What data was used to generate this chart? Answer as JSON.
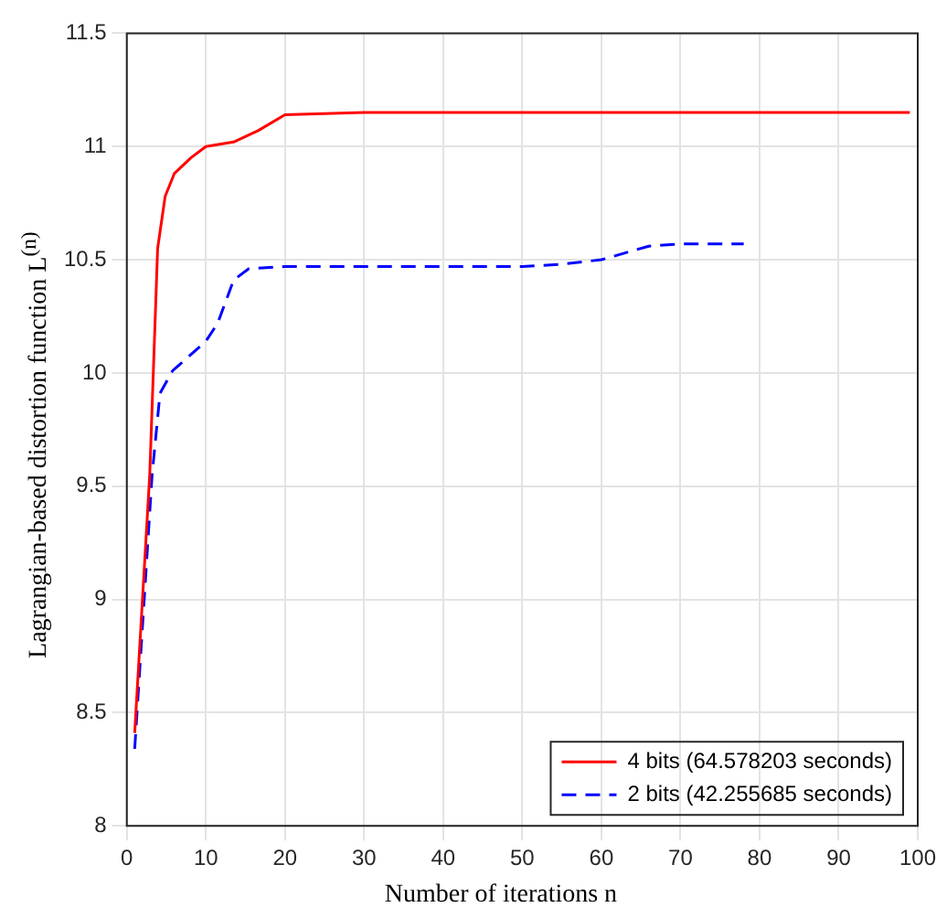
{
  "chart_data": {
    "type": "line",
    "xlabel": "Number of iterations n",
    "ylabel": "Lagrangian-based distortion function L$^{(n)}$",
    "xlim": [
      0,
      100
    ],
    "ylim": [
      8,
      11.5
    ],
    "xticks": [
      0,
      10,
      20,
      30,
      40,
      50,
      60,
      70,
      80,
      90,
      100
    ],
    "yticks": [
      8,
      8.5,
      9,
      9.5,
      10,
      10.5,
      11,
      11.5
    ],
    "grid": true,
    "legend": "bottom right",
    "marker": "none",
    "series": [
      {
        "name": "4 bits (64.578203 seconds)",
        "color": "#ff0000",
        "line_style": "solid",
        "x": [
          1,
          2.9,
          3.9,
          4.85,
          6,
          8.1,
          10,
          13.5,
          16.6,
          20,
          30,
          50,
          70,
          99
        ],
        "values": [
          8.41,
          9.55,
          10.55,
          10.78,
          10.88,
          10.95,
          11.0,
          11.02,
          11.07,
          11.14,
          11.15,
          11.15,
          11.15,
          11.15
        ]
      },
      {
        "name": "2 bits (42.255685 seconds)",
        "color": "#0000ff",
        "line_style": "dashed",
        "x": [
          1,
          3.2,
          4.2,
          5.8,
          10,
          11.5,
          13.5,
          15.4,
          20,
          30,
          50,
          55,
          60,
          63,
          66,
          70,
          78
        ],
        "values": [
          8.34,
          9.55,
          9.91,
          10.01,
          10.14,
          10.22,
          10.41,
          10.46,
          10.47,
          10.47,
          10.47,
          10.48,
          10.5,
          10.53,
          10.56,
          10.57,
          10.57
        ]
      }
    ]
  }
}
